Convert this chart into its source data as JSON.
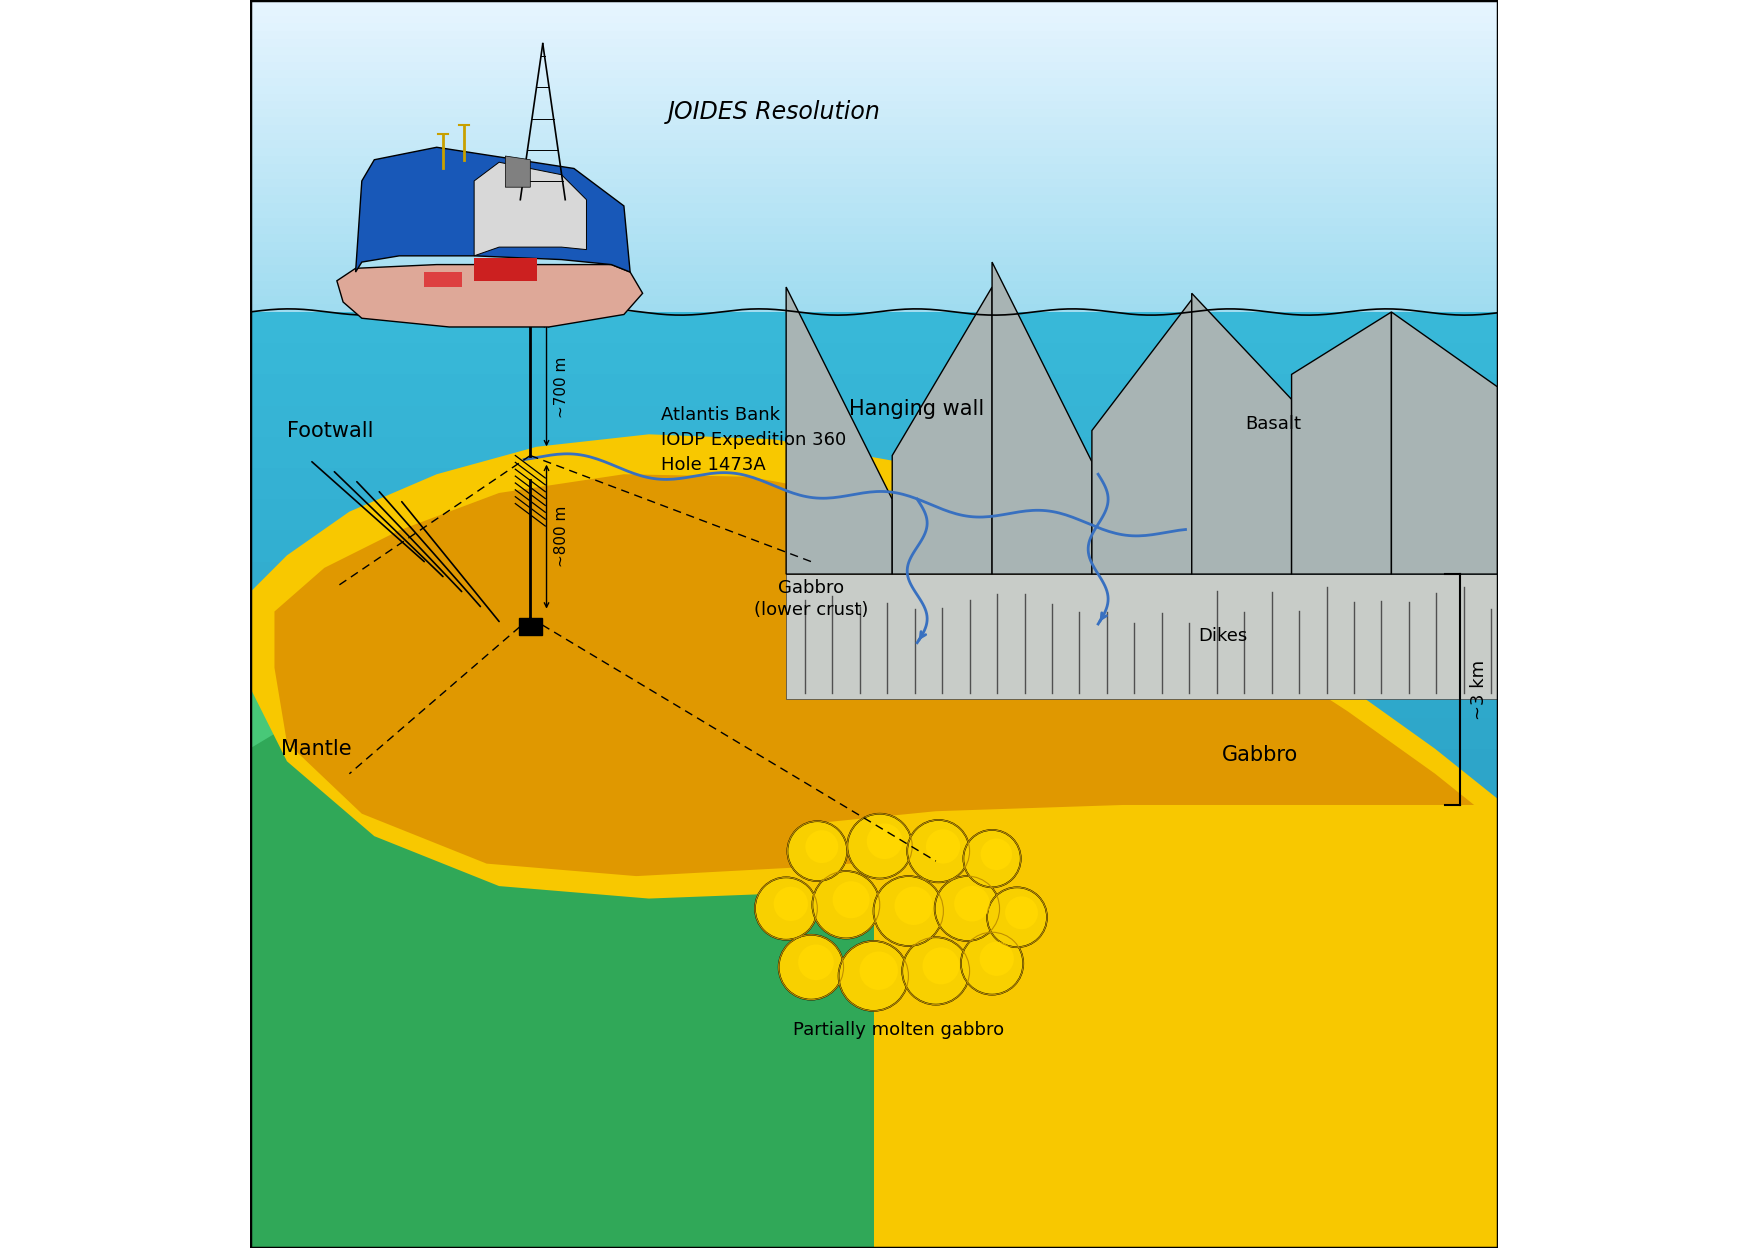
{
  "fig_width": 17.47,
  "fig_height": 12.48,
  "dpi": 100,
  "title": "JOIDES Resolution",
  "label_footwall": "Footwall",
  "label_mantle": "Mantle",
  "label_gabbro_lower": "Gabbro\n(lower crust)",
  "label_gabbro": "Gabbro",
  "label_dikes": "Dikes",
  "label_basalt": "Basalt",
  "label_hanging_wall": "Hanging wall",
  "label_molten": "Partially molten gabbro",
  "label_700m": "~700 m",
  "label_800m": "~800 m",
  "label_3km": "~3 km",
  "label_atlantis": "Atlantis Bank\nIODP Expedition 360\nHole 1473A",
  "sky_top": "#c8eef8",
  "sky_bottom": "#a0dcf0",
  "ocean_color": "#38b8d8",
  "ocean_deep": "#28a0c0",
  "mantle_color": "#48c878",
  "mantle_dark": "#30a858",
  "footwall_bright": "#f8c800",
  "footwall_dark": "#e09800",
  "gabbro_color": "#f8c800",
  "dike_color": "#c8ccc8",
  "basalt_color": "#a8b0b0",
  "hw_block_color": "#a8b4b4",
  "hw_block_edge": "#000000",
  "blue_line": "#3870c0",
  "text_color": "#000000",
  "border_color": "#000000"
}
